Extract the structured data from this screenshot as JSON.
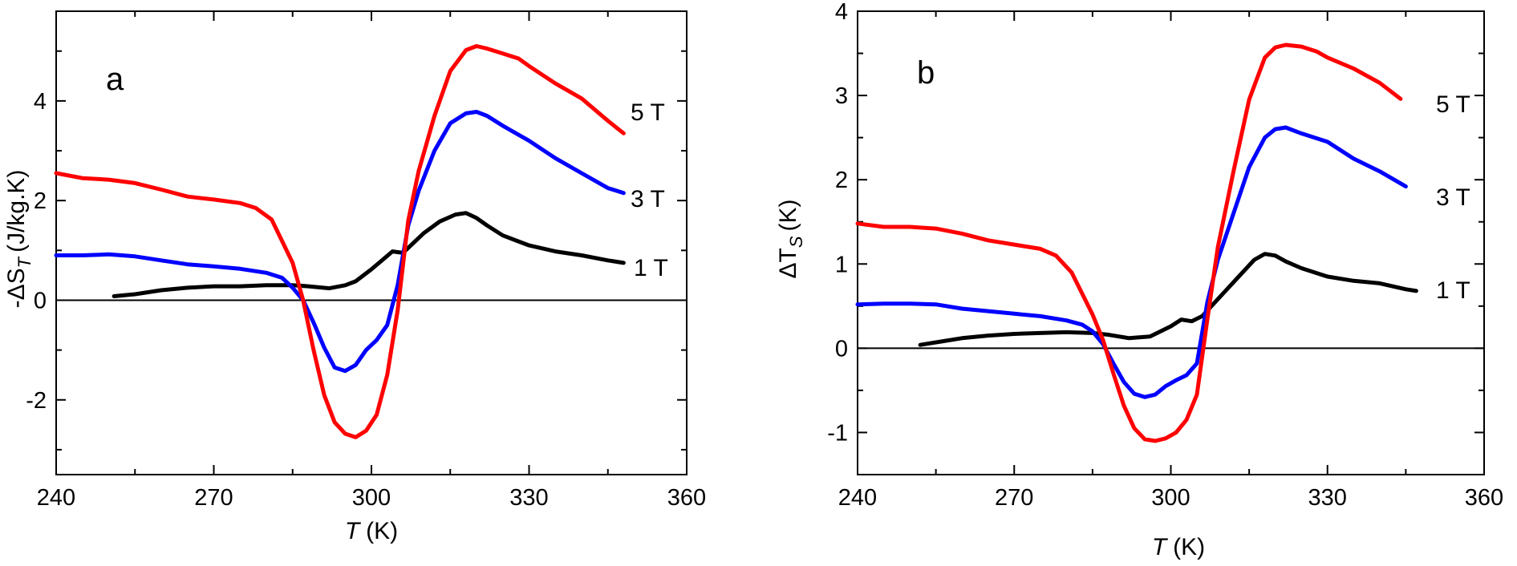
{
  "chart_data": [
    {
      "type": "line",
      "panel_label": "a",
      "xlabel": "T",
      "xlabel_unit": "(K)",
      "ylabel_prefix": "-ΔS",
      "ylabel_sub": "T",
      "ylabel_unit": "(J/kg.K)",
      "xlim": [
        240,
        360
      ],
      "ylim": [
        -3.5,
        5.8
      ],
      "xticks": [
        240,
        270,
        300,
        330,
        360
      ],
      "xtick_labels": [
        "240",
        "270",
        "300",
        "330",
        "360"
      ],
      "yticks": [
        -2,
        0,
        2,
        4
      ],
      "ytick_labels": [
        "-2",
        "0",
        "2",
        "4"
      ],
      "zero_line": true,
      "series": [
        {
          "name": "1 T",
          "color": "#000000",
          "x": [
            251,
            255,
            260,
            265,
            270,
            275,
            280,
            285,
            288,
            292,
            295,
            297,
            300,
            302,
            304,
            306,
            310,
            313,
            316,
            318,
            320,
            322,
            325,
            330,
            335,
            340,
            345,
            348
          ],
          "y": [
            0.08,
            0.12,
            0.2,
            0.25,
            0.28,
            0.28,
            0.3,
            0.3,
            0.28,
            0.24,
            0.3,
            0.38,
            0.62,
            0.8,
            0.98,
            0.95,
            1.35,
            1.58,
            1.72,
            1.75,
            1.65,
            1.5,
            1.3,
            1.1,
            0.98,
            0.9,
            0.8,
            0.75
          ]
        },
        {
          "name": "3 T",
          "color": "#0000ff",
          "x": [
            240,
            245,
            250,
            255,
            260,
            265,
            270,
            275,
            280,
            283,
            285,
            287,
            289,
            291,
            293,
            295,
            297,
            299,
            301,
            303,
            305,
            307,
            309,
            312,
            315,
            318,
            320,
            322,
            325,
            330,
            335,
            340,
            345,
            348
          ],
          "y": [
            0.9,
            0.9,
            0.92,
            0.88,
            0.8,
            0.72,
            0.68,
            0.63,
            0.55,
            0.45,
            0.25,
            0.0,
            -0.45,
            -0.95,
            -1.35,
            -1.42,
            -1.3,
            -1.0,
            -0.8,
            -0.5,
            0.3,
            1.5,
            2.2,
            3.0,
            3.55,
            3.75,
            3.78,
            3.7,
            3.5,
            3.2,
            2.85,
            2.55,
            2.25,
            2.15
          ]
        },
        {
          "name": "5 T",
          "color": "#ff0000",
          "x": [
            240,
            245,
            250,
            255,
            260,
            265,
            270,
            275,
            278,
            281,
            285,
            287,
            289,
            291,
            293,
            295,
            297,
            299,
            301,
            303,
            305,
            307,
            309,
            312,
            315,
            318,
            320,
            322,
            325,
            328,
            330,
            335,
            340,
            345,
            348
          ],
          "y": [
            2.55,
            2.45,
            2.42,
            2.35,
            2.22,
            2.08,
            2.02,
            1.95,
            1.85,
            1.62,
            0.75,
            0.0,
            -1.0,
            -1.9,
            -2.45,
            -2.68,
            -2.75,
            -2.62,
            -2.3,
            -1.5,
            -0.2,
            1.6,
            2.6,
            3.7,
            4.6,
            5.02,
            5.1,
            5.05,
            4.95,
            4.85,
            4.7,
            4.35,
            4.05,
            3.6,
            3.35
          ]
        }
      ],
      "series_labels": [
        "5 T",
        "3 T",
        "1 T"
      ]
    },
    {
      "type": "line",
      "panel_label": "b",
      "xlabel": "T",
      "xlabel_unit": "(K)",
      "ylabel_prefix": "ΔT",
      "ylabel_sub": "S",
      "ylabel_unit": "(K)",
      "xlim": [
        240,
        360
      ],
      "ylim": [
        -1.5,
        4
      ],
      "xticks": [
        240,
        270,
        300,
        330,
        360
      ],
      "xtick_labels": [
        "240",
        "270",
        "300",
        "330",
        "360"
      ],
      "yticks": [
        -1,
        0,
        1,
        2,
        3,
        4
      ],
      "ytick_labels": [
        "-1",
        "0",
        "1",
        "2",
        "3",
        "4"
      ],
      "zero_line": true,
      "series": [
        {
          "name": "1 T",
          "color": "#000000",
          "x": [
            252,
            256,
            260,
            265,
            270,
            275,
            280,
            285,
            288,
            292,
            296,
            300,
            302,
            304,
            306,
            310,
            313,
            316,
            318,
            320,
            322,
            325,
            330,
            335,
            340,
            345,
            347
          ],
          "y": [
            0.04,
            0.08,
            0.12,
            0.15,
            0.17,
            0.18,
            0.19,
            0.18,
            0.16,
            0.12,
            0.14,
            0.26,
            0.34,
            0.32,
            0.38,
            0.65,
            0.85,
            1.05,
            1.12,
            1.1,
            1.03,
            0.95,
            0.85,
            0.8,
            0.77,
            0.7,
            0.68
          ]
        },
        {
          "name": "3 T",
          "color": "#0000ff",
          "x": [
            240,
            245,
            250,
            255,
            260,
            265,
            270,
            275,
            280,
            283,
            285,
            287,
            289,
            291,
            293,
            295,
            297,
            299,
            301,
            303,
            305,
            307,
            309,
            312,
            315,
            318,
            320,
            322,
            325,
            330,
            335,
            340,
            345
          ],
          "y": [
            0.52,
            0.53,
            0.53,
            0.52,
            0.47,
            0.44,
            0.41,
            0.38,
            0.33,
            0.28,
            0.2,
            0.05,
            -0.18,
            -0.4,
            -0.54,
            -0.58,
            -0.55,
            -0.45,
            -0.38,
            -0.32,
            -0.18,
            0.55,
            1.05,
            1.6,
            2.15,
            2.5,
            2.6,
            2.62,
            2.55,
            2.45,
            2.25,
            2.1,
            1.92
          ]
        },
        {
          "name": "5 T",
          "color": "#ff0000",
          "x": [
            240,
            245,
            250,
            255,
            260,
            265,
            270,
            275,
            278,
            281,
            285,
            287,
            289,
            291,
            293,
            295,
            297,
            299,
            301,
            303,
            305,
            307,
            309,
            312,
            315,
            318,
            320,
            322,
            325,
            328,
            330,
            335,
            340,
            344
          ],
          "y": [
            1.48,
            1.44,
            1.44,
            1.42,
            1.36,
            1.28,
            1.23,
            1.18,
            1.1,
            0.9,
            0.4,
            0.1,
            -0.3,
            -0.68,
            -0.95,
            -1.08,
            -1.1,
            -1.07,
            -1.0,
            -0.85,
            -0.55,
            0.35,
            1.2,
            2.1,
            2.95,
            3.45,
            3.57,
            3.6,
            3.58,
            3.52,
            3.45,
            3.32,
            3.15,
            2.96
          ]
        }
      ],
      "series_labels": [
        "5 T",
        "3 T",
        "1 T"
      ]
    }
  ]
}
